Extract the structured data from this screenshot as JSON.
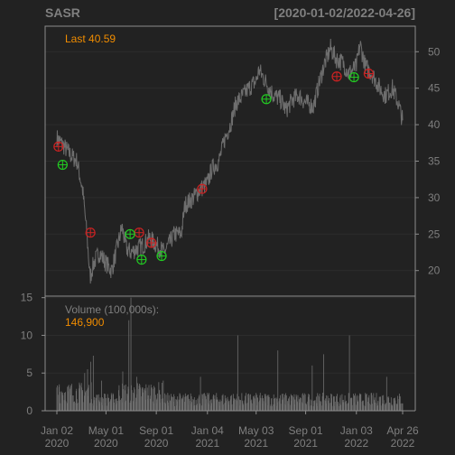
{
  "header": {
    "symbol": "SASR",
    "range": "[2020-01-02/2022-04-26]"
  },
  "colors": {
    "background": "#222222",
    "grid": "#2c2c2c",
    "frame": "#8c8c8c",
    "text": "#7f7f7f",
    "price_line": "#6e6e6e",
    "volume_bar": "#6e6e6e",
    "accent": "#f08c00",
    "sell_marker": "#cc2222",
    "buy_marker": "#22cc22"
  },
  "chart_data": [
    {
      "type": "line",
      "name": "price-panel",
      "title": "SASR",
      "date_range_label": "[2020-01-02/2022-04-26]",
      "last_label": "Last 40.59",
      "x_ticks": [
        {
          "date": "2020-01-02",
          "label1": "Jan 02",
          "label2": "2020"
        },
        {
          "date": "2020-05-01",
          "label1": "May 01",
          "label2": "2020"
        },
        {
          "date": "2020-09-01",
          "label1": "Sep 01",
          "label2": "2020"
        },
        {
          "date": "2021-01-04",
          "label1": "Jan 04",
          "label2": "2021"
        },
        {
          "date": "2021-05-03",
          "label1": "May 03",
          "label2": "2021"
        },
        {
          "date": "2021-09-01",
          "label1": "Sep 01",
          "label2": "2021"
        },
        {
          "date": "2022-01-03",
          "label1": "Jan 03",
          "label2": "2022"
        },
        {
          "date": "2022-04-26",
          "label1": "Apr 26",
          "label2": "2022"
        }
      ],
      "xlim": [
        "2020-01-02",
        "2022-04-26"
      ],
      "ylim": [
        16.5,
        53.5
      ],
      "y_ticks": [
        20,
        25,
        30,
        35,
        40,
        45,
        50
      ],
      "grid": true,
      "price": [
        [
          "2020-01-02",
          38.2
        ],
        [
          "2020-01-20",
          37.0
        ],
        [
          "2020-02-05",
          35.8
        ],
        [
          "2020-02-20",
          35.0
        ],
        [
          "2020-03-05",
          31.0
        ],
        [
          "2020-03-12",
          27.0
        ],
        [
          "2020-03-18",
          23.0
        ],
        [
          "2020-03-23",
          19.0
        ],
        [
          "2020-04-01",
          21.0
        ],
        [
          "2020-04-15",
          22.5
        ],
        [
          "2020-05-01",
          21.0
        ],
        [
          "2020-05-15",
          20.0
        ],
        [
          "2020-06-01",
          24.0
        ],
        [
          "2020-06-09",
          26.0
        ],
        [
          "2020-06-20",
          23.0
        ],
        [
          "2020-07-01",
          22.5
        ],
        [
          "2020-07-15",
          23.0
        ],
        [
          "2020-08-01",
          23.5
        ],
        [
          "2020-08-15",
          24.5
        ],
        [
          "2020-09-01",
          23.5
        ],
        [
          "2020-09-20",
          22.5
        ],
        [
          "2020-10-01",
          23.5
        ],
        [
          "2020-10-15",
          25.0
        ],
        [
          "2020-11-01",
          25.0
        ],
        [
          "2020-11-10",
          29.0
        ],
        [
          "2020-12-01",
          30.0
        ],
        [
          "2020-12-15",
          31.0
        ],
        [
          "2021-01-04",
          32.0
        ],
        [
          "2021-01-15",
          34.0
        ],
        [
          "2021-02-01",
          35.0
        ],
        [
          "2021-02-15",
          38.0
        ],
        [
          "2021-03-01",
          40.0
        ],
        [
          "2021-03-15",
          43.0
        ],
        [
          "2021-04-01",
          44.0
        ],
        [
          "2021-04-15",
          45.0
        ],
        [
          "2021-05-03",
          46.0
        ],
        [
          "2021-05-10",
          47.5
        ],
        [
          "2021-05-25",
          46.0
        ],
        [
          "2021-06-15",
          44.0
        ],
        [
          "2021-07-01",
          43.5
        ],
        [
          "2021-07-15",
          42.0
        ],
        [
          "2021-08-01",
          43.5
        ],
        [
          "2021-08-15",
          44.0
        ],
        [
          "2021-09-01",
          43.0
        ],
        [
          "2021-09-20",
          42.5
        ],
        [
          "2021-10-01",
          45.0
        ],
        [
          "2021-10-15",
          48.0
        ],
        [
          "2021-11-01",
          50.5
        ],
        [
          "2021-11-15",
          49.0
        ],
        [
          "2021-12-01",
          48.5
        ],
        [
          "2021-12-15",
          47.0
        ],
        [
          "2022-01-03",
          48.0
        ],
        [
          "2022-01-12",
          51.0
        ],
        [
          "2022-01-25",
          48.0
        ],
        [
          "2022-02-10",
          47.0
        ],
        [
          "2022-03-01",
          45.0
        ],
        [
          "2022-03-15",
          44.0
        ],
        [
          "2022-04-01",
          45.0
        ],
        [
          "2022-04-15",
          43.0
        ],
        [
          "2022-04-26",
          40.59
        ]
      ],
      "sell_signals": [
        {
          "date": "2020-01-06",
          "value": 37.0
        },
        {
          "date": "2020-03-24",
          "value": 25.2
        },
        {
          "date": "2020-07-21",
          "value": 25.2
        },
        {
          "date": "2020-08-20",
          "value": 23.8
        },
        {
          "date": "2020-12-22",
          "value": 31.2
        },
        {
          "date": "2021-11-16",
          "value": 46.6
        },
        {
          "date": "2022-02-02",
          "value": 47.0
        }
      ],
      "buy_signals": [
        {
          "date": "2020-01-16",
          "value": 34.5
        },
        {
          "date": "2020-06-29",
          "value": 25.0
        },
        {
          "date": "2020-07-27",
          "value": 21.5
        },
        {
          "date": "2020-09-14",
          "value": 22.0
        },
        {
          "date": "2021-05-28",
          "value": 43.5
        },
        {
          "date": "2021-12-28",
          "value": 46.5
        }
      ]
    },
    {
      "type": "bar",
      "name": "volume-panel",
      "label": "Volume (100,000s):",
      "last_value_label": "146,900",
      "ylim": [
        0,
        15.2
      ],
      "y_ticks": [
        0,
        5,
        10,
        15
      ],
      "baseline": 1.5,
      "spikes": [
        {
          "date": "2020-01-08",
          "value": 3.5
        },
        {
          "date": "2020-03-10",
          "value": 5.0
        },
        {
          "date": "2020-03-17",
          "value": 5.5
        },
        {
          "date": "2020-03-25",
          "value": 6.5
        },
        {
          "date": "2020-03-31",
          "value": 7.3
        },
        {
          "date": "2020-04-20",
          "value": 4.0
        },
        {
          "date": "2020-06-11",
          "value": 5.2
        },
        {
          "date": "2020-06-26",
          "value": 12.0
        },
        {
          "date": "2020-07-01",
          "value": 15.0
        },
        {
          "date": "2020-07-15",
          "value": 4.5
        },
        {
          "date": "2020-09-18",
          "value": 4.0
        },
        {
          "date": "2020-12-18",
          "value": 4.5
        },
        {
          "date": "2021-03-19",
          "value": 10.0
        },
        {
          "date": "2021-06-25",
          "value": 8.0
        },
        {
          "date": "2021-09-17",
          "value": 6.0
        },
        {
          "date": "2021-10-15",
          "value": 7.5
        },
        {
          "date": "2021-12-17",
          "value": 10.0
        },
        {
          "date": "2022-03-18",
          "value": 4.5
        }
      ]
    }
  ]
}
